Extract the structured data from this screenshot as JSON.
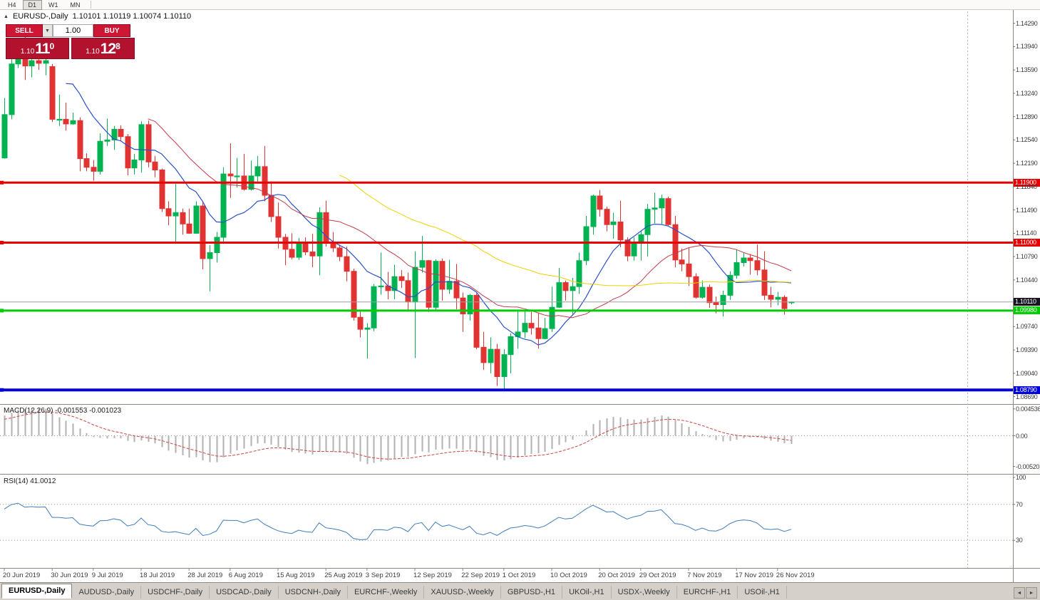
{
  "theme": {
    "candle_up": "#00b350",
    "candle_down": "#e23333",
    "ma_fast": "#2c50c8",
    "ma_mid": "#c23b4b",
    "ma_slow": "#eed202",
    "macd_hist": "#b2b2b2",
    "macd_signal": "#cc4444",
    "rsi": "#3f7cba",
    "hline_red": "#e60000",
    "hline_green": "#00cc00",
    "hline_blue": "#0000dd",
    "current_line": "#a0a0a0",
    "current_label_bg": "#15151f",
    "panel_red_box": "#b2122d",
    "panel_red_btn": "#cf1634"
  },
  "icons": {
    "panel_toggle": "▲",
    "dropdown": "▼",
    "tab_scroll_left": "◄",
    "tab_scroll_right": "►"
  },
  "toolbar": {
    "timeframes": [
      {
        "label": "H4",
        "active": false
      },
      {
        "label": "D1",
        "active": true
      },
      {
        "label": "W1",
        "active": false
      },
      {
        "label": "MN",
        "active": false
      }
    ]
  },
  "chart": {
    "title": "EURUSD-,Daily",
    "ohlc": "1.10101 1.10119 1.10074 1.10110",
    "trade_panel": {
      "sell_label": "SELL",
      "buy_label": "BUY",
      "volume": "1.00",
      "sell_price_prefix": "1.10",
      "sell_price_big": "11",
      "sell_price_pip": "0",
      "buy_price_prefix": "1.10",
      "buy_price_big": "12",
      "buy_price_pip": "8"
    }
  },
  "chart_data": {
    "type": "candlestick",
    "symbol": "EURUSD-",
    "timeframe": "Daily",
    "title": "EURUSD-,Daily",
    "price_range_visible": [
      1.086,
      1.1434
    ],
    "x_range": "20 Jun 2019 - 28 Nov 2019",
    "candles": [
      [
        "2019-06-20",
        1.1227,
        1.1317,
        1.1226,
        1.1292
      ],
      [
        "2019-06-21",
        1.1292,
        1.1378,
        1.1285,
        1.1368
      ],
      [
        "2019-06-24",
        1.1368,
        1.1403,
        1.1362,
        1.1399
      ],
      [
        "2019-06-25",
        1.1399,
        1.1412,
        1.1344,
        1.1365
      ],
      [
        "2019-06-26",
        1.1365,
        1.1391,
        1.1348,
        1.1373
      ],
      [
        "2019-06-27",
        1.1373,
        1.1388,
        1.1359,
        1.1369
      ],
      [
        "2019-06-28",
        1.1369,
        1.1391,
        1.1351,
        1.1373
      ],
      [
        "2019-07-01",
        1.1364,
        1.1368,
        1.1281,
        1.1285
      ],
      [
        "2019-07-02",
        1.1285,
        1.1322,
        1.1275,
        1.1285
      ],
      [
        "2019-07-03",
        1.1285,
        1.131,
        1.1268,
        1.1278
      ],
      [
        "2019-07-04",
        1.1278,
        1.1295,
        1.1277,
        1.1283
      ],
      [
        "2019-07-05",
        1.1283,
        1.1288,
        1.1207,
        1.1226
      ],
      [
        "2019-07-08",
        1.1226,
        1.1234,
        1.1207,
        1.1213
      ],
      [
        "2019-07-09",
        1.1213,
        1.1224,
        1.1193,
        1.1207
      ],
      [
        "2019-07-10",
        1.1207,
        1.1264,
        1.1202,
        1.1252
      ],
      [
        "2019-07-11",
        1.1252,
        1.1286,
        1.1245,
        1.1254
      ],
      [
        "2019-07-12",
        1.1254,
        1.1275,
        1.1239,
        1.127
      ],
      [
        "2019-07-15",
        1.127,
        1.1276,
        1.1253,
        1.1259
      ],
      [
        "2019-07-16",
        1.1259,
        1.1263,
        1.1201,
        1.1212
      ],
      [
        "2019-07-17",
        1.1212,
        1.1233,
        1.1202,
        1.1224
      ],
      [
        "2019-07-18",
        1.1224,
        1.1282,
        1.1205,
        1.1277
      ],
      [
        "2019-07-19",
        1.1277,
        1.1283,
        1.1213,
        1.1221
      ],
      [
        "2019-07-22",
        1.1221,
        1.123,
        1.1198,
        1.1209
      ],
      [
        "2019-07-23",
        1.1209,
        1.1211,
        1.1146,
        1.1151
      ],
      [
        "2019-07-24",
        1.1151,
        1.1162,
        1.1126,
        1.114
      ],
      [
        "2019-07-25",
        1.114,
        1.1188,
        1.1101,
        1.1145
      ],
      [
        "2019-07-26",
        1.1145,
        1.1151,
        1.1112,
        1.1128
      ],
      [
        "2019-07-29",
        1.1128,
        1.1151,
        1.1113,
        1.1114
      ],
      [
        "2019-07-30",
        1.1114,
        1.1162,
        1.1113,
        1.1155
      ],
      [
        "2019-07-31",
        1.1155,
        1.1162,
        1.106,
        1.1076
      ],
      [
        "2019-08-01",
        1.1076,
        1.1096,
        1.1027,
        1.1085
      ],
      [
        "2019-08-02",
        1.1085,
        1.1116,
        1.107,
        1.1108
      ],
      [
        "2019-08-05",
        1.1108,
        1.1213,
        1.1101,
        1.1203
      ],
      [
        "2019-08-06",
        1.1203,
        1.1249,
        1.1167,
        1.12
      ],
      [
        "2019-08-07",
        1.12,
        1.1227,
        1.1183,
        1.12
      ],
      [
        "2019-08-08",
        1.12,
        1.1233,
        1.1178,
        1.118
      ],
      [
        "2019-08-09",
        1.118,
        1.1223,
        1.1178,
        1.12
      ],
      [
        "2019-08-12",
        1.12,
        1.123,
        1.119,
        1.1214
      ],
      [
        "2019-08-13",
        1.1214,
        1.1245,
        1.1162,
        1.1171
      ],
      [
        "2019-08-14",
        1.1171,
        1.1192,
        1.1131,
        1.1139
      ],
      [
        "2019-08-15",
        1.1139,
        1.116,
        1.1091,
        1.1108
      ],
      [
        "2019-08-16",
        1.1108,
        1.1113,
        1.1066,
        1.109
      ],
      [
        "2019-08-19",
        1.109,
        1.1114,
        1.1075,
        1.1078
      ],
      [
        "2019-08-20",
        1.1078,
        1.1107,
        1.1074,
        1.11
      ],
      [
        "2019-08-21",
        1.11,
        1.1108,
        1.1081,
        1.1086
      ],
      [
        "2019-08-22",
        1.1086,
        1.1113,
        1.1063,
        1.108
      ],
      [
        "2019-08-23",
        1.108,
        1.1153,
        1.1051,
        1.1145
      ],
      [
        "2019-08-26",
        1.1145,
        1.1163,
        1.1094,
        1.1101
      ],
      [
        "2019-08-27",
        1.1101,
        1.1116,
        1.1086,
        1.1092
      ],
      [
        "2019-08-28",
        1.1092,
        1.1097,
        1.1072,
        1.1079
      ],
      [
        "2019-08-29",
        1.1079,
        1.1094,
        1.1042,
        1.1057
      ],
      [
        "2019-08-30",
        1.1057,
        1.1061,
        1.0983,
        1.0988
      ],
      [
        "2019-09-02",
        1.0988,
        1.0998,
        1.0958,
        1.097
      ],
      [
        "2019-09-03",
        1.097,
        1.0979,
        1.0926,
        1.0972
      ],
      [
        "2019-09-04",
        1.0972,
        1.1038,
        1.0967,
        1.1034
      ],
      [
        "2019-09-05",
        1.1034,
        1.1085,
        1.1022,
        1.1035
      ],
      [
        "2019-09-06",
        1.1035,
        1.1056,
        1.1015,
        1.1028
      ],
      [
        "2019-09-09",
        1.1028,
        1.1067,
        1.1015,
        1.1049
      ],
      [
        "2019-09-10",
        1.1049,
        1.1059,
        1.1032,
        1.1043
      ],
      [
        "2019-09-11",
        1.1043,
        1.1055,
        1.0999,
        1.1011
      ],
      [
        "2019-09-12",
        1.1011,
        1.1087,
        1.0927,
        1.1063
      ],
      [
        "2019-09-13",
        1.1063,
        1.111,
        1.1055,
        1.1073
      ],
      [
        "2019-09-16",
        1.1073,
        1.1074,
        1.0996,
        1.1003
      ],
      [
        "2019-09-17",
        1.1003,
        1.1075,
        1.0998,
        1.1072
      ],
      [
        "2019-09-18",
        1.1072,
        1.1076,
        1.1013,
        1.103
      ],
      [
        "2019-09-19",
        1.103,
        1.1074,
        1.1023,
        1.1042
      ],
      [
        "2019-09-20",
        1.1042,
        1.1068,
        1.1,
        1.1017
      ],
      [
        "2019-09-23",
        1.1017,
        1.1025,
        1.0966,
        1.0993
      ],
      [
        "2019-09-24",
        1.0993,
        1.1023,
        1.0983,
        1.1021
      ],
      [
        "2019-09-25",
        1.1021,
        1.1024,
        1.094,
        1.0943
      ],
      [
        "2019-09-26",
        1.0943,
        1.0966,
        1.0909,
        1.092
      ],
      [
        "2019-09-27",
        1.092,
        1.0958,
        1.0904,
        1.094
      ],
      [
        "2019-09-30",
        1.094,
        1.0948,
        1.0885,
        1.0899
      ],
      [
        "2019-10-01",
        1.0899,
        1.094,
        1.0879,
        1.0932
      ],
      [
        "2019-10-02",
        1.0932,
        1.0964,
        1.0904,
        1.0959
      ],
      [
        "2019-10-03",
        1.0959,
        1.0999,
        1.0941,
        1.0966
      ],
      [
        "2019-10-04",
        1.0966,
        1.0999,
        1.0957,
        1.0979
      ],
      [
        "2019-10-07",
        1.0979,
        1.0996,
        1.0962,
        1.0972
      ],
      [
        "2019-10-08",
        1.0972,
        1.0995,
        1.0941,
        1.0956
      ],
      [
        "2019-10-09",
        1.0956,
        1.0987,
        1.0955,
        1.0971
      ],
      [
        "2019-10-10",
        1.0971,
        1.1034,
        1.0966,
        1.1003
      ],
      [
        "2019-10-11",
        1.1003,
        1.1062,
        1.1002,
        1.104
      ],
      [
        "2019-10-14",
        1.104,
        1.1043,
        1.1013,
        1.1028
      ],
      [
        "2019-10-15",
        1.1028,
        1.1047,
        1.0991,
        1.1034
      ],
      [
        "2019-10-16",
        1.1034,
        1.1085,
        1.1023,
        1.1073
      ],
      [
        "2019-10-17",
        1.1073,
        1.114,
        1.1066,
        1.1124
      ],
      [
        "2019-10-18",
        1.1124,
        1.1172,
        1.1112,
        1.117
      ],
      [
        "2019-10-21",
        1.117,
        1.1179,
        1.1139,
        1.115
      ],
      [
        "2019-10-22",
        1.115,
        1.1154,
        1.1117,
        1.1127
      ],
      [
        "2019-10-23",
        1.1127,
        1.1145,
        1.1106,
        1.1131
      ],
      [
        "2019-10-24",
        1.1131,
        1.1163,
        1.1093,
        1.1104
      ],
      [
        "2019-10-25",
        1.1104,
        1.1108,
        1.1072,
        1.108
      ],
      [
        "2019-10-28",
        1.108,
        1.1108,
        1.1073,
        1.11
      ],
      [
        "2019-10-29",
        1.11,
        1.1118,
        1.1073,
        1.1112
      ],
      [
        "2019-10-30",
        1.1112,
        1.1158,
        1.1079,
        1.115
      ],
      [
        "2019-10-31",
        1.115,
        1.1175,
        1.1129,
        1.1152
      ],
      [
        "2019-11-01",
        1.1152,
        1.1172,
        1.1128,
        1.1166
      ],
      [
        "2019-11-04",
        1.1166,
        1.1169,
        1.1125,
        1.1127
      ],
      [
        "2019-11-05",
        1.1127,
        1.114,
        1.1063,
        1.1074
      ],
      [
        "2019-11-06",
        1.1074,
        1.1091,
        1.1057,
        1.1068
      ],
      [
        "2019-11-07",
        1.1068,
        1.1092,
        1.1035,
        1.1049
      ],
      [
        "2019-11-08",
        1.1049,
        1.1054,
        1.1016,
        1.1018
      ],
      [
        "2019-11-11",
        1.1018,
        1.1043,
        1.1016,
        1.1033
      ],
      [
        "2019-11-12",
        1.1033,
        1.1037,
        1.1002,
        1.101
      ],
      [
        "2019-11-13",
        1.101,
        1.1019,
        1.0994,
        1.1007
      ],
      [
        "2019-11-14",
        1.1007,
        1.1028,
        1.0989,
        1.1021
      ],
      [
        "2019-11-15",
        1.1021,
        1.1057,
        1.1014,
        1.1051
      ],
      [
        "2019-11-18",
        1.1051,
        1.109,
        1.1046,
        1.107
      ],
      [
        "2019-11-19",
        1.107,
        1.1085,
        1.1064,
        1.1077
      ],
      [
        "2019-11-20",
        1.1077,
        1.1083,
        1.1052,
        1.1073
      ],
      [
        "2019-11-21",
        1.1073,
        1.1097,
        1.1051,
        1.1059
      ],
      [
        "2019-11-22",
        1.1059,
        1.1087,
        1.1014,
        1.1021
      ],
      [
        "2019-11-25",
        1.1021,
        1.1034,
        1.1003,
        1.1015
      ],
      [
        "2019-11-26",
        1.1015,
        1.1026,
        1.1006,
        1.1018
      ],
      [
        "2019-11-27",
        1.1018,
        1.1021,
        1.0992,
        1.1001
      ],
      [
        "2019-11-28",
        1.10101,
        1.10119,
        1.10074,
        1.1011
      ]
    ],
    "moving_averages": [
      {
        "period": 10,
        "type": "sma",
        "color": "#2c50c8"
      },
      {
        "period": 22,
        "type": "sma",
        "color": "#c23b4b"
      },
      {
        "period": 50,
        "type": "sma",
        "color": "#eed202"
      }
    ],
    "price_axis_ticks": [
      "1.14290",
      "1.13940",
      "1.13590",
      "1.13240",
      "1.12890",
      "1.12540",
      "1.12190",
      "1.11840",
      "1.11490",
      "1.11140",
      "1.10790",
      "1.10440",
      "1.09740",
      "1.09390",
      "1.09040",
      "1.08690"
    ],
    "hlines": [
      {
        "price": 1.119,
        "color": "#e60000",
        "width": 3,
        "label": "1.11900",
        "name": "resistance-line-1"
      },
      {
        "price": 1.11,
        "color": "#e60000",
        "width": 3,
        "label": "1.11000",
        "name": "resistance-line-2"
      },
      {
        "price": 1.0998,
        "color": "#00cc00",
        "width": 3,
        "label": "1.09980",
        "name": "support-line-green"
      },
      {
        "price": 1.0879,
        "color": "#0000dd",
        "width": 4,
        "label": "1.08790",
        "name": "support-line-blue"
      }
    ],
    "current_price": {
      "value": 1.1011,
      "label": "1.10110"
    },
    "date_labels": [
      {
        "text": "20 Jun 2019",
        "date": "2019-06-20"
      },
      {
        "text": "30 Jun 2019",
        "date": "2019-06-30"
      },
      {
        "text": "9 Jul 2019",
        "date": "2019-07-09"
      },
      {
        "text": "18 Jul 2019",
        "date": "2019-07-18"
      },
      {
        "text": "28 Jul 2019",
        "date": "2019-07-28"
      },
      {
        "text": "6 Aug 2019",
        "date": "2019-08-06"
      },
      {
        "text": "15 Aug 2019",
        "date": "2019-08-15"
      },
      {
        "text": "25 Aug 2019",
        "date": "2019-08-25"
      },
      {
        "text": "3 Sep 2019",
        "date": "2019-09-03"
      },
      {
        "text": "12 Sep 2019",
        "date": "2019-09-12"
      },
      {
        "text": "22 Sep 2019",
        "date": "2019-09-22"
      },
      {
        "text": "1 Oct 2019",
        "date": "2019-10-01"
      },
      {
        "text": "10 Oct 2019",
        "date": "2019-10-10"
      },
      {
        "text": "20 Oct 2019",
        "date": "2019-10-20"
      },
      {
        "text": "29 Oct 2019",
        "date": "2019-10-29"
      },
      {
        "text": "7 Nov 2019",
        "date": "2019-11-07"
      },
      {
        "text": "17 Nov 2019",
        "date": "2019-11-17"
      },
      {
        "text": "26 Nov 2019",
        "date": "2019-11-26"
      }
    ],
    "indicators": {
      "macd": {
        "label": "MACD(12,26,9) -0.001553 -0.001023",
        "params": [
          12,
          26,
          9
        ],
        "main_value": -0.001553,
        "signal_value": -0.001023,
        "ticks": [
          {
            "label": "0.004536",
            "value": 0.004536
          },
          {
            "label": "0.00",
            "value": 0
          },
          {
            "label": "-0.00520",
            "value": -0.0052
          }
        ],
        "range": [
          -0.0062,
          0.005
        ]
      },
      "rsi": {
        "label": "RSI(14) 41.0012",
        "period": 14,
        "value": 41.0012,
        "ticks": [
          {
            "label": "100",
            "value": 100
          },
          {
            "label": "70",
            "value": 70
          },
          {
            "label": "30",
            "value": 30
          }
        ],
        "levels": [
          70,
          30
        ]
      }
    }
  },
  "tabs": {
    "items": [
      {
        "label": "EURUSD-,Daily",
        "active": true
      },
      {
        "label": "AUDUSD-,Daily",
        "active": false
      },
      {
        "label": "USDCHF-,Daily",
        "active": false
      },
      {
        "label": "USDCAD-,Daily",
        "active": false
      },
      {
        "label": "USDCNH-,Daily",
        "active": false
      },
      {
        "label": "EURCHF-,Weekly",
        "active": false
      },
      {
        "label": "XAUUSD-,Weekly",
        "active": false
      },
      {
        "label": "GBPUSD-,H1",
        "active": false
      },
      {
        "label": "UKOil-,H1",
        "active": false
      },
      {
        "label": "USDX-,Weekly",
        "active": false
      },
      {
        "label": "EURCHF-,H1",
        "active": false
      },
      {
        "label": "USOil-,H1",
        "active": false
      }
    ]
  }
}
